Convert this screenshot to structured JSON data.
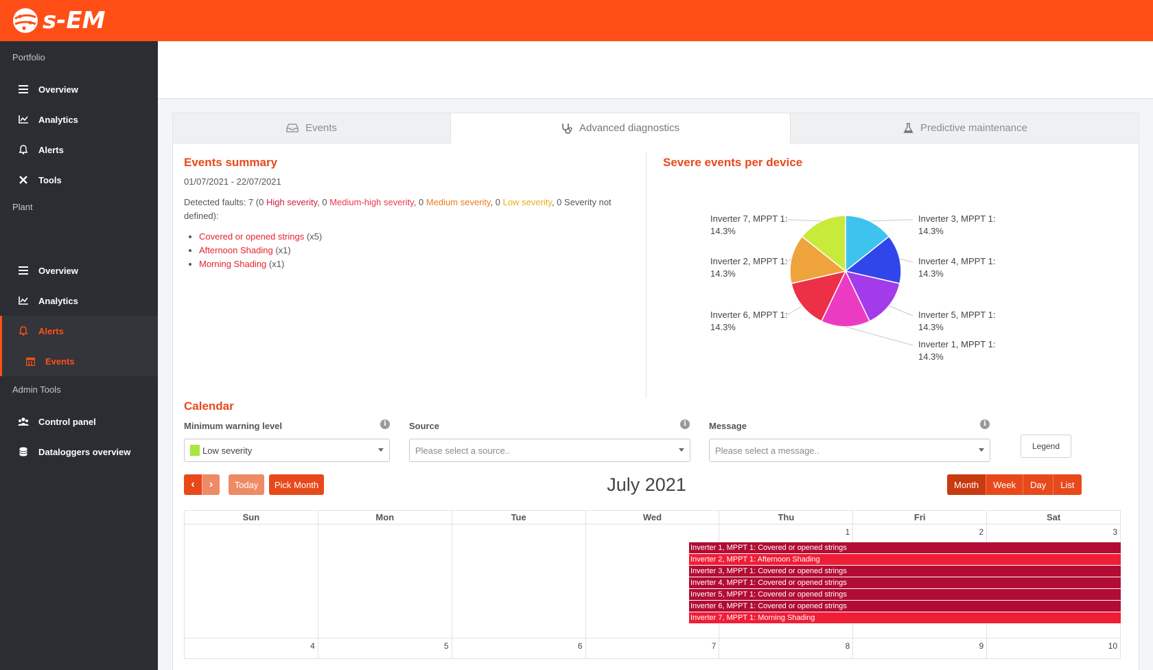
{
  "brand": {
    "name": "s-EM",
    "accent": "#ff4f17"
  },
  "sidebar": {
    "sections": [
      "Portfolio",
      "Plant",
      "Admin Tools"
    ],
    "portfolio_items": [
      {
        "label": "Overview",
        "icon": "list-icon"
      },
      {
        "label": "Analytics",
        "icon": "chart-icon"
      },
      {
        "label": "Alerts",
        "icon": "bell-icon"
      },
      {
        "label": "Tools",
        "icon": "tools-icon"
      }
    ],
    "plant_items": [
      {
        "label": "Overview",
        "icon": "list-icon"
      },
      {
        "label": "Analytics",
        "icon": "chart-icon"
      },
      {
        "label": "Alerts",
        "icon": "bell-icon"
      },
      {
        "label": "Events",
        "icon": "calendar-icon"
      }
    ],
    "admin_items": [
      {
        "label": "Control panel",
        "icon": "users-icon"
      },
      {
        "label": "Dataloggers overview",
        "icon": "database-icon"
      }
    ]
  },
  "tabs": [
    {
      "label": "Events",
      "icon": "inbox-icon"
    },
    {
      "label": "Advanced diagnostics",
      "icon": "stethoscope-icon"
    },
    {
      "label": "Predictive maintenance",
      "icon": "flask-icon"
    }
  ],
  "summary": {
    "title": "Events summary",
    "date_range": "01/07/2021 - 22/07/2021",
    "faults_prefix": "Detected faults: 7 (0 ",
    "high": "High severity",
    "sep1": ", 0 ",
    "medium_high": "Medium-high severity",
    "sep2": ", 0 ",
    "medium": "Medium severity",
    "sep3": ", 0 ",
    "low": "Low severity",
    "faults_suffix": ", 0 Severity not defined):",
    "faults": [
      {
        "name": "Covered or opened strings",
        "count": "(x5)"
      },
      {
        "name": "Afternoon Shading",
        "count": "(x1)"
      },
      {
        "name": "Morning Shading",
        "count": "(x1)"
      }
    ]
  },
  "severe": {
    "title": "Severe events per device"
  },
  "chart_data": {
    "type": "pie",
    "title": "Severe events per device",
    "series": [
      {
        "name": "Inverter 3, MPPT 1:",
        "value": 14.3,
        "label": "14.3%",
        "color": "#3ec3ef"
      },
      {
        "name": "Inverter 4, MPPT 1:",
        "value": 14.3,
        "label": "14.3%",
        "color": "#3146ea"
      },
      {
        "name": "Inverter 5, MPPT 1:",
        "value": 14.3,
        "label": "14.3%",
        "color": "#a43bea"
      },
      {
        "name": "Inverter 1, MPPT 1:",
        "value": 14.3,
        "label": "14.3%",
        "color": "#ec3bc3"
      },
      {
        "name": "Inverter 6, MPPT 1:",
        "value": 14.3,
        "label": "14.3%",
        "color": "#ec3146"
      },
      {
        "name": "Inverter 2, MPPT 1:",
        "value": 14.3,
        "label": "14.3%",
        "color": "#eea33b"
      },
      {
        "name": "Inverter 7, MPPT 1:",
        "value": 14.3,
        "label": "14.3%",
        "color": "#c8ea3b"
      }
    ]
  },
  "calendar": {
    "title": "Calendar",
    "filters": {
      "min_warning_label": "Minimum warning level",
      "min_warning_value": "Low severity",
      "source_label": "Source",
      "source_placeholder": "Please select a source..",
      "message_label": "Message",
      "message_placeholder": "Please select a message..",
      "legend_button": "Legend"
    },
    "toolbar": {
      "prev": "‹",
      "next": "›",
      "today": "Today",
      "pick_month": "Pick Month",
      "month_title": "July 2021",
      "views": [
        "Month",
        "Week",
        "Day",
        "List"
      ]
    },
    "weekdays": [
      "Sun",
      "Mon",
      "Tue",
      "Wed",
      "Thu",
      "Fri",
      "Sat"
    ],
    "week1_days": [
      "",
      "",
      "",
      "",
      "1",
      "2",
      "3"
    ],
    "week2_days": [
      "4",
      "5",
      "6",
      "7",
      "8",
      "9",
      "10"
    ],
    "events": [
      {
        "text": "Inverter 1, MPPT 1: Covered or opened strings",
        "style": "dark"
      },
      {
        "text": "Inverter 2, MPPT 1: Afternoon Shading",
        "style": "red"
      },
      {
        "text": "Inverter 3, MPPT 1: Covered or opened strings",
        "style": "dark"
      },
      {
        "text": "Inverter 4, MPPT 1: Covered or opened strings",
        "style": "dark"
      },
      {
        "text": "Inverter 5, MPPT 1: Covered or opened strings",
        "style": "dark"
      },
      {
        "text": "Inverter 6, MPPT 1: Covered or opened strings",
        "style": "dark"
      },
      {
        "text": "Inverter 7, MPPT 1: Morning Shading",
        "style": "red"
      }
    ]
  }
}
